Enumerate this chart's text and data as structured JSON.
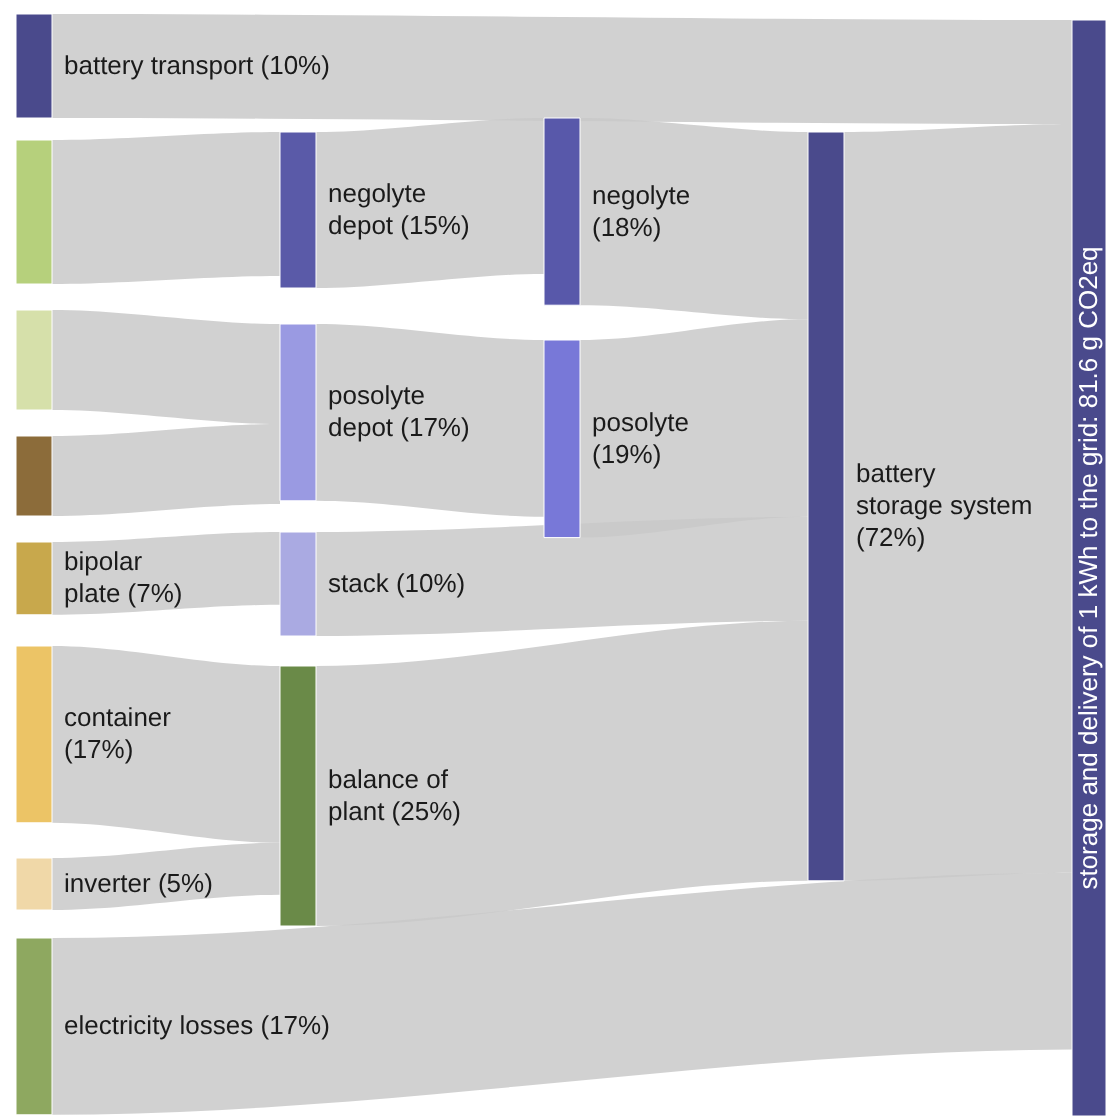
{
  "chart_data": {
    "type": "other",
    "categories": [
      "battery transport",
      null,
      null,
      null,
      "bipolar plate",
      "container",
      "inverter",
      "electricity losses",
      "negolyte depot",
      "posolyte depot",
      "stack",
      "balance of plant",
      "negolyte",
      "posolyte",
      "battery storage system",
      "storage and delivery of 1 kWh to the grid: 81.6 g CO2eq"
    ],
    "values": [
      10,
      null,
      null,
      null,
      7,
      17,
      5,
      17,
      15,
      17,
      10,
      25,
      18,
      19,
      72,
      null
    ],
    "value_labels": [
      "(10%)",
      null,
      null,
      null,
      "(7%)",
      "(17%)",
      "(5%)",
      "(17%)",
      "(15%)",
      "(17%)",
      "(10%)",
      "(25%)",
      "(18%)",
      "(19%)",
      "(72%)",
      null
    ]
  }
}
